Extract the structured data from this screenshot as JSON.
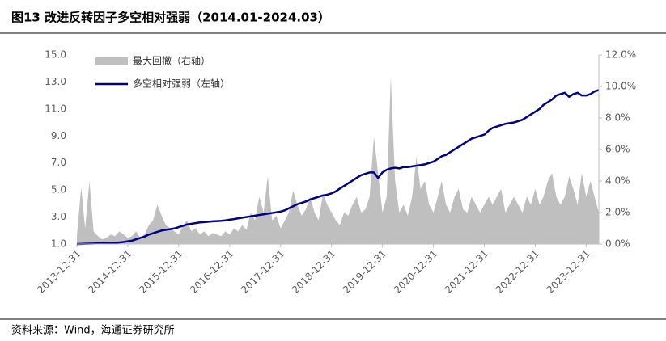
{
  "chart_data": {
    "type": "line",
    "title": "图13 改进反转因子多空相对强弱（2014.01-2024.03）",
    "source": "资料来源：Wind，海通证券研究所",
    "x": [
      "2013-12-31",
      "2014-01-31",
      "2014-02-28",
      "2014-03-31",
      "2014-04-30",
      "2014-05-31",
      "2014-06-30",
      "2014-07-31",
      "2014-08-31",
      "2014-09-30",
      "2014-10-31",
      "2014-11-30",
      "2014-12-31",
      "2015-01-31",
      "2015-02-28",
      "2015-03-31",
      "2015-04-30",
      "2015-05-31",
      "2015-06-30",
      "2015-07-31",
      "2015-08-31",
      "2015-09-30",
      "2015-10-31",
      "2015-11-30",
      "2015-12-31",
      "2016-01-31",
      "2016-02-29",
      "2016-03-31",
      "2016-04-30",
      "2016-05-31",
      "2016-06-30",
      "2016-07-31",
      "2016-08-31",
      "2016-09-30",
      "2016-10-31",
      "2016-11-30",
      "2016-12-31",
      "2017-01-31",
      "2017-02-28",
      "2017-03-31",
      "2017-04-30",
      "2017-05-31",
      "2017-06-30",
      "2017-07-31",
      "2017-08-31",
      "2017-09-30",
      "2017-10-31",
      "2017-11-30",
      "2017-12-31",
      "2018-01-31",
      "2018-02-28",
      "2018-03-31",
      "2018-04-30",
      "2018-05-31",
      "2018-06-30",
      "2018-07-31",
      "2018-08-31",
      "2018-09-30",
      "2018-10-31",
      "2018-11-30",
      "2018-12-31",
      "2019-01-31",
      "2019-02-28",
      "2019-03-31",
      "2019-04-30",
      "2019-05-31",
      "2019-06-30",
      "2019-07-31",
      "2019-08-31",
      "2019-09-30",
      "2019-10-31",
      "2019-11-30",
      "2019-12-31",
      "2020-01-31",
      "2020-02-29",
      "2020-03-31",
      "2020-04-30",
      "2020-05-31",
      "2020-06-30",
      "2020-07-31",
      "2020-08-31",
      "2020-09-30",
      "2020-10-31",
      "2020-11-30",
      "2020-12-31",
      "2021-01-31",
      "2021-02-28",
      "2021-03-31",
      "2021-04-30",
      "2021-05-31",
      "2021-06-30",
      "2021-07-31",
      "2021-08-31",
      "2021-09-30",
      "2021-10-31",
      "2021-11-30",
      "2021-12-31",
      "2022-01-31",
      "2022-02-28",
      "2022-03-31",
      "2022-04-30",
      "2022-05-31",
      "2022-06-30",
      "2022-07-31",
      "2022-08-31",
      "2022-09-30",
      "2022-10-31",
      "2022-11-30",
      "2022-12-31",
      "2023-01-31",
      "2023-02-28",
      "2023-03-31",
      "2023-04-30",
      "2023-05-31",
      "2023-06-30",
      "2023-07-31",
      "2023-08-31",
      "2023-09-30",
      "2023-10-31",
      "2023-11-30",
      "2023-12-31",
      "2024-01-31",
      "2024-02-29",
      "2024-03-31"
    ],
    "xlim": [
      "2013-12-31",
      "2024-03-31"
    ],
    "xticks": [
      "2013-12-31",
      "2014-12-31",
      "2015-12-31",
      "2016-12-31",
      "2017-12-31",
      "2018-12-31",
      "2019-12-31",
      "2020-12-31",
      "2021-12-31",
      "2022-12-31",
      "2023-12-31"
    ],
    "ylim": [
      1,
      15
    ],
    "yticks": [
      {
        "value": 1,
        "label": "1.0"
      },
      {
        "value": 3,
        "label": "3.0"
      },
      {
        "value": 5,
        "label": "5.0"
      },
      {
        "value": 7,
        "label": "7.0"
      },
      {
        "value": 9,
        "label": "9.0"
      },
      {
        "value": 11,
        "label": "11.0"
      },
      {
        "value": 13,
        "label": "13.0"
      },
      {
        "value": 15,
        "label": "15.0"
      }
    ],
    "y2lim": [
      0,
      12
    ],
    "y2ticks": [
      {
        "value": 0,
        "label": "0.0%"
      },
      {
        "value": 2,
        "label": "2.0%"
      },
      {
        "value": 4,
        "label": "4.0%"
      },
      {
        "value": 6,
        "label": "6.0%"
      },
      {
        "value": 8,
        "label": "8.0%"
      },
      {
        "value": 10,
        "label": "10.0%"
      },
      {
        "value": 12,
        "label": "12.0%"
      }
    ],
    "series": [
      {
        "name": "最大回撤（右轴）",
        "color": "#bfbfbf",
        "axis": "y2",
        "kind": "area",
        "values": [
          0.5,
          3.6,
          1.0,
          4.0,
          0.8,
          0.5,
          0.3,
          0.4,
          0.6,
          0.5,
          0.8,
          0.6,
          0.4,
          0.5,
          0.8,
          0.4,
          0.6,
          1.2,
          1.5,
          2.5,
          1.8,
          1.2,
          1.0,
          0.8,
          0.6,
          1.2,
          1.5,
          0.8,
          1.0,
          0.6,
          0.8,
          0.5,
          0.7,
          0.6,
          0.5,
          0.8,
          0.6,
          1.0,
          0.8,
          1.2,
          0.9,
          2.0,
          1.5,
          3.0,
          2.0,
          4.3,
          1.5,
          1.8,
          1.0,
          1.5,
          2.0,
          3.4,
          2.5,
          1.8,
          2.2,
          3.0,
          2.0,
          1.5,
          3.2,
          2.5,
          2.0,
          1.5,
          1.2,
          2.0,
          1.8,
          2.5,
          3.0,
          2.0,
          2.2,
          3.0,
          6.8,
          4.5,
          2.0,
          3.0,
          10.6,
          4.0,
          2.0,
          2.5,
          1.8,
          3.0,
          5.5,
          3.5,
          4.0,
          2.5,
          2.0,
          3.0,
          4.0,
          2.5,
          2.0,
          3.0,
          3.5,
          2.2,
          2.0,
          3.0,
          2.5,
          2.0,
          2.5,
          3.0,
          2.5,
          3.0,
          3.5,
          2.0,
          2.5,
          3.0,
          2.5,
          2.0,
          3.0,
          2.5,
          3.5,
          2.5,
          3.0,
          4.0,
          4.5,
          3.0,
          2.5,
          3.0,
          4.3,
          3.5,
          2.5,
          4.5,
          3.0,
          4.0,
          3.0,
          2.0
        ]
      },
      {
        "name": "多空相对强弱（左轴）",
        "color": "#00008b",
        "axis": "y",
        "kind": "line",
        "values": [
          1.0,
          1.01,
          1.02,
          1.03,
          1.04,
          1.05,
          1.06,
          1.08,
          1.09,
          1.1,
          1.12,
          1.15,
          1.2,
          1.25,
          1.35,
          1.45,
          1.55,
          1.7,
          1.8,
          1.9,
          2.0,
          2.05,
          2.1,
          2.15,
          2.25,
          2.35,
          2.45,
          2.5,
          2.55,
          2.6,
          2.62,
          2.65,
          2.68,
          2.7,
          2.72,
          2.75,
          2.8,
          2.85,
          2.9,
          2.95,
          3.0,
          3.05,
          3.1,
          3.15,
          3.2,
          3.25,
          3.3,
          3.35,
          3.4,
          3.5,
          3.65,
          3.8,
          3.95,
          4.05,
          4.15,
          4.3,
          4.4,
          4.5,
          4.6,
          4.65,
          4.75,
          4.9,
          5.1,
          5.3,
          5.5,
          5.7,
          5.9,
          6.1,
          6.2,
          6.3,
          6.3,
          5.9,
          6.3,
          6.5,
          6.6,
          6.65,
          6.6,
          6.7,
          6.7,
          6.75,
          6.8,
          6.85,
          6.9,
          7.0,
          7.1,
          7.3,
          7.5,
          7.6,
          7.8,
          8.0,
          8.2,
          8.4,
          8.6,
          8.8,
          8.9,
          9.0,
          9.1,
          9.4,
          9.6,
          9.7,
          9.8,
          9.9,
          9.95,
          10.0,
          10.1,
          10.2,
          10.4,
          10.6,
          10.8,
          11.0,
          11.3,
          11.5,
          11.7,
          12.0,
          12.1,
          12.2,
          11.9,
          12.1,
          12.2,
          12.0,
          12.0,
          12.1,
          12.3,
          12.4
        ]
      }
    ],
    "legend": "top-left"
  }
}
